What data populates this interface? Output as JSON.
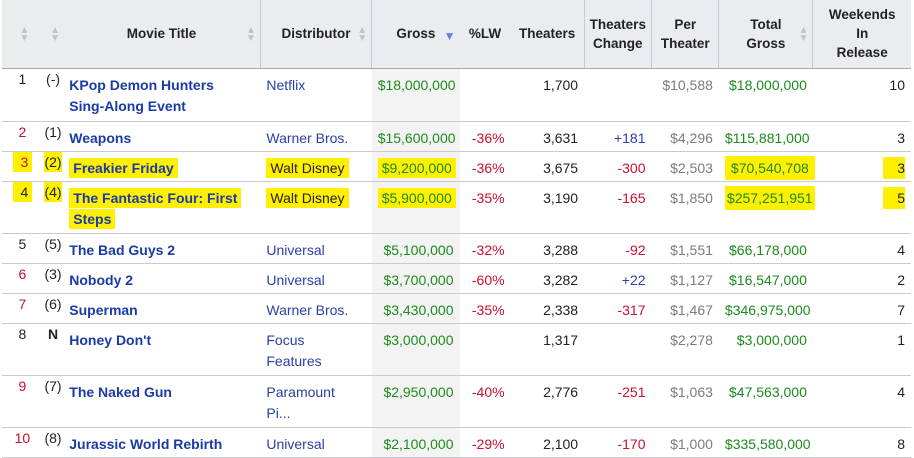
{
  "headers": {
    "title": "Movie Title",
    "distributor": "Distributor",
    "gross": "Gross",
    "lw": "%LW",
    "theaters": "Theaters",
    "theaters_change_1": "Theaters",
    "theaters_change_2": "Change",
    "per_theater_1": "Per",
    "per_theater_2": "Theater",
    "total_gross_1": "Total",
    "total_gross_2": "Gross",
    "weekends_1": "Weekends",
    "weekends_2": "In",
    "weekends_3": "Release"
  },
  "rows": [
    {
      "rank": "1",
      "prev": "(-)",
      "title_1": "KPop Demon Hunters",
      "title_2": "Sing-Along Event",
      "distributor_1": "Netflix",
      "distributor_2": "",
      "gross": "$18,000,000",
      "lw": "",
      "theaters": "1,700",
      "change": "",
      "per_theater": "$10,588",
      "total": "$18,000,000",
      "weekends": "10"
    },
    {
      "rank": "2",
      "prev": "(1)",
      "title_1": "Weapons",
      "title_2": "",
      "distributor_1": "Warner Bros.",
      "distributor_2": "",
      "gross": "$15,600,000",
      "lw": "-36%",
      "theaters": "3,631",
      "change": "+181",
      "per_theater": "$4,296",
      "total": "$115,881,000",
      "weekends": "3"
    },
    {
      "rank": "3",
      "prev": "(2)",
      "title_1": "Freakier Friday",
      "title_2": "",
      "distributor_1": "Walt Disney",
      "distributor_2": "",
      "gross": "$9,200,000",
      "lw": "-36%",
      "theaters": "3,675",
      "change": "-300",
      "per_theater": "$2,503",
      "total": "$70,540,708",
      "weekends": "3"
    },
    {
      "rank": "4",
      "prev": "(4)",
      "title_1": "The Fantastic Four: First",
      "title_2": "Steps",
      "distributor_1": "Walt Disney",
      "distributor_2": "",
      "gross": "$5,900,000",
      "lw": "-35%",
      "theaters": "3,190",
      "change": "-165",
      "per_theater": "$1,850",
      "total": "$257,251,951",
      "weekends": "5"
    },
    {
      "rank": "5",
      "prev": "(5)",
      "title_1": "The Bad Guys 2",
      "title_2": "",
      "distributor_1": "Universal",
      "distributor_2": "",
      "gross": "$5,100,000",
      "lw": "-32%",
      "theaters": "3,288",
      "change": "-92",
      "per_theater": "$1,551",
      "total": "$66,178,000",
      "weekends": "4"
    },
    {
      "rank": "6",
      "prev": "(3)",
      "title_1": "Nobody 2",
      "title_2": "",
      "distributor_1": "Universal",
      "distributor_2": "",
      "gross": "$3,700,000",
      "lw": "-60%",
      "theaters": "3,282",
      "change": "+22",
      "per_theater": "$1,127",
      "total": "$16,547,000",
      "weekends": "2"
    },
    {
      "rank": "7",
      "prev": "(6)",
      "title_1": "Superman",
      "title_2": "",
      "distributor_1": "Warner Bros.",
      "distributor_2": "",
      "gross": "$3,430,000",
      "lw": "-35%",
      "theaters": "2,338",
      "change": "-317",
      "per_theater": "$1,467",
      "total": "$346,975,000",
      "weekends": "7"
    },
    {
      "rank": "8",
      "prev": "N",
      "title_1": "Honey Don't",
      "title_2": "",
      "distributor_1": "Focus",
      "distributor_2": "Features",
      "gross": "$3,000,000",
      "lw": "",
      "theaters": "1,317",
      "change": "",
      "per_theater": "$2,278",
      "total": "$3,000,000",
      "weekends": "1"
    },
    {
      "rank": "9",
      "prev": "(7)",
      "title_1": "The Naked Gun",
      "title_2": "",
      "distributor_1": "Paramount",
      "distributor_2": "Pi...",
      "gross": "$2,950,000",
      "lw": "-40%",
      "theaters": "2,776",
      "change": "-251",
      "per_theater": "$1,063",
      "total": "$47,563,000",
      "weekends": "4"
    },
    {
      "rank": "10",
      "prev": "(8)",
      "title_1": "Jurassic World Rebirth",
      "title_2": "",
      "distributor_1": "Universal",
      "distributor_2": "",
      "gross": "$2,100,000",
      "lw": "-29%",
      "theaters": "2,100",
      "change": "-170",
      "per_theater": "$1,000",
      "total": "$335,580,000",
      "weekends": "8"
    }
  ],
  "colors": {
    "highlight": "#ffef00",
    "link": "#1a3aa8",
    "gross_green": "#1d8a1d",
    "negative_red": "#c8102e",
    "header_bg": "#eaecf0"
  }
}
